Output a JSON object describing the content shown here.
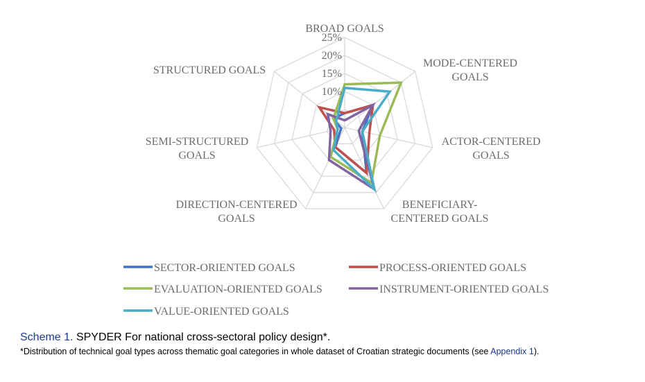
{
  "chart_data": {
    "type": "radar",
    "axes": [
      "BROAD GOALS",
      "MODE-CENTERED GOALS",
      "ACTOR-CENTERED GOALS",
      "BENEFICIARY-CENTERED GOALS",
      "DIRECTION-CENTERED GOALS",
      "SEMI-STRUCTURED GOALS",
      "STRUCTURED GOALS"
    ],
    "axis_label_lines": [
      [
        "BROAD GOALS"
      ],
      [
        "MODE-CENTERED",
        "GOALS"
      ],
      [
        "ACTOR-CENTERED",
        "GOALS"
      ],
      [
        "BENEFICIARY-",
        "CENTERED GOALS"
      ],
      [
        "DIRECTION-CENTERED",
        "GOALS"
      ],
      [
        "SEMI-STRUCTURED",
        "GOALS"
      ],
      [
        "STRUCTURED GOALS"
      ]
    ],
    "ticks": [
      "10%",
      "15%",
      "20%",
      "25%"
    ],
    "tick_values": [
      10,
      15,
      20,
      25
    ],
    "rmax": 25,
    "gridline_count": 5,
    "series": [
      {
        "name": "SECTOR-ORIENTED GOALS",
        "color": "#4472c4",
        "values": [
          4,
          10,
          5,
          14,
          6,
          1,
          4
        ]
      },
      {
        "name": "PROCESS-ORIENTED GOALS",
        "color": "#c0504d",
        "values": [
          4,
          10,
          7,
          14,
          6,
          3,
          9
        ]
      },
      {
        "name": "EVALUATION-ORIENTED GOALS",
        "color": "#9bbb59",
        "values": [
          12,
          20,
          10,
          17,
          9,
          2,
          4
        ]
      },
      {
        "name": "INSTRUMENT-ORIENTED GOALS",
        "color": "#8064a2",
        "values": [
          2,
          10,
          4,
          19,
          10,
          4,
          6
        ]
      },
      {
        "name": "VALUE-ORIENTED GOALS",
        "color": "#4bacc6",
        "values": [
          11,
          16,
          5,
          19,
          7,
          2,
          3
        ]
      }
    ]
  },
  "caption": {
    "scheme_number": "Scheme 1.",
    "title": "SPYDER For national cross-sectoral policy design*.",
    "note_prefix": "*Distribution of technical goal types across thematic goal categories in whole dataset of Croatian strategic documents (see ",
    "note_link": "Appendix 1",
    "note_suffix": ")."
  }
}
